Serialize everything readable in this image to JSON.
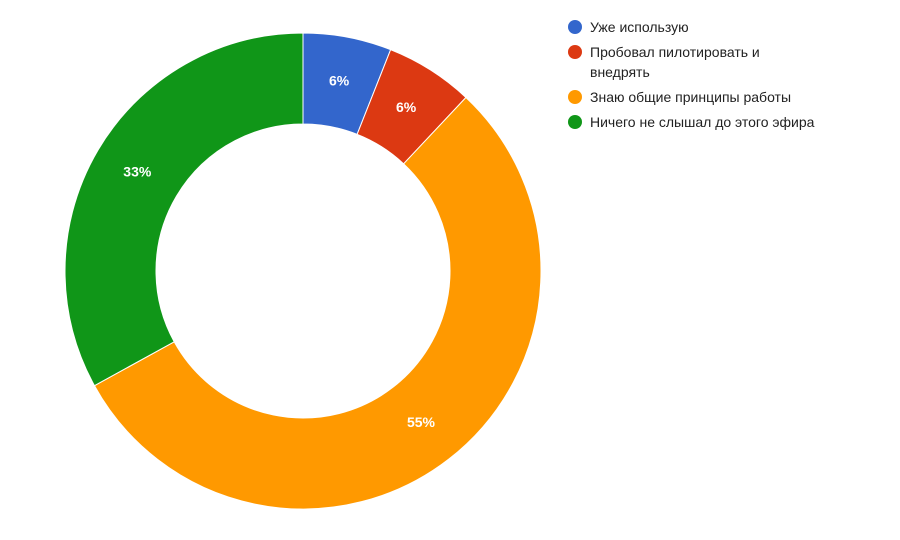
{
  "chart_data": {
    "type": "donut",
    "categories": [
      "Уже использую",
      "Пробовал пилотировать и внедрять",
      "Знаю общие принципы работы",
      "Ничего не слышал до этого эфира"
    ],
    "values": [
      6,
      6,
      55,
      33
    ],
    "value_labels": [
      "6%",
      "6%",
      "55%",
      "33%"
    ],
    "colors": [
      "#3366cc",
      "#dc3912",
      "#ff9900",
      "#109618"
    ]
  }
}
